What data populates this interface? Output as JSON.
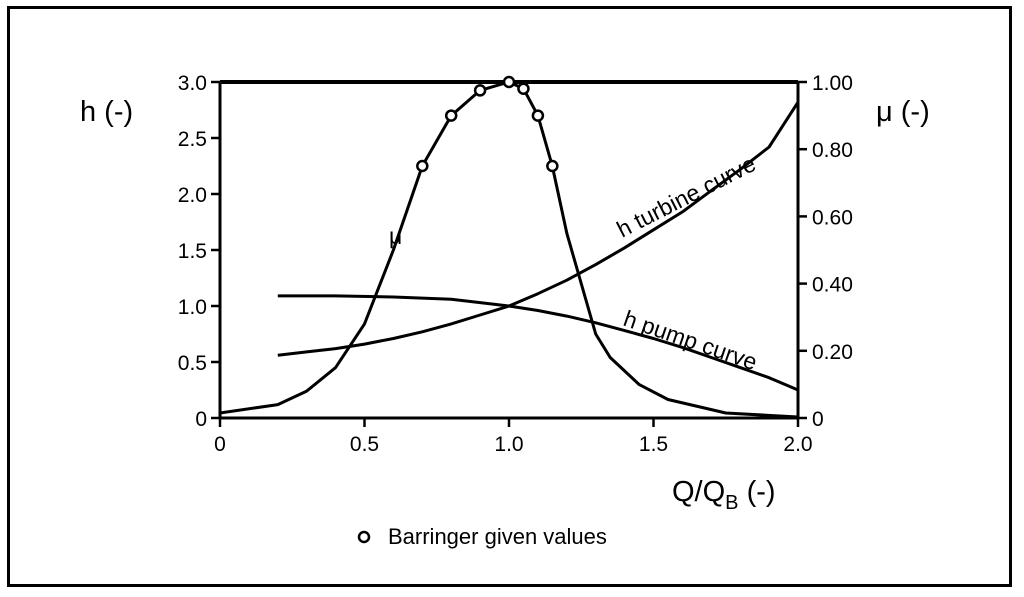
{
  "chart_data": {
    "type": "line",
    "xlabel": "Q/Q",
    "xlabel_subscript": "B",
    "xlabel_suffix": " (-)",
    "ylabel_left": "h (-)",
    "ylabel_right": "μ (-)",
    "xlim": [
      0,
      2.0
    ],
    "ylim_left": [
      0,
      3.0
    ],
    "ylim_right": [
      0,
      1.0
    ],
    "x_ticks": [
      "0",
      "0.5",
      "1.0",
      "1.5",
      "2.0"
    ],
    "y_left_ticks": [
      "0",
      "0.5",
      "1.0",
      "1.5",
      "2.0",
      "2.5",
      "3.0"
    ],
    "y_right_ticks": [
      "0",
      "0.20",
      "0.40",
      "0.60",
      "0.80",
      "1.00"
    ],
    "grid": false,
    "series": [
      {
        "name": "h turbine curve",
        "axis": "left",
        "x": [
          0.2,
          0.3,
          0.4,
          0.5,
          0.6,
          0.7,
          0.8,
          0.9,
          1.0,
          1.1,
          1.2,
          1.3,
          1.4,
          1.5,
          1.6,
          1.7,
          1.8,
          1.9,
          2.0
        ],
        "y": [
          0.56,
          0.59,
          0.62,
          0.66,
          0.71,
          0.77,
          0.84,
          0.92,
          1.0,
          1.11,
          1.23,
          1.37,
          1.52,
          1.68,
          1.84,
          2.03,
          2.22,
          2.42,
          2.82
        ]
      },
      {
        "name": "h pump curve",
        "axis": "left",
        "x": [
          0.2,
          0.4,
          0.6,
          0.8,
          0.9,
          1.0,
          1.1,
          1.2,
          1.3,
          1.4,
          1.5,
          1.6,
          1.7,
          1.8,
          1.9,
          2.0
        ],
        "y": [
          1.09,
          1.09,
          1.08,
          1.06,
          1.03,
          1.0,
          0.96,
          0.91,
          0.85,
          0.78,
          0.71,
          0.63,
          0.54,
          0.45,
          0.36,
          0.25
        ]
      },
      {
        "name": "μ",
        "axis": "right",
        "x": [
          0.0,
          0.2,
          0.3,
          0.4,
          0.5,
          0.6,
          0.7,
          0.8,
          0.9,
          1.0,
          1.05,
          1.1,
          1.15,
          1.2,
          1.3,
          1.35,
          1.45,
          1.55,
          1.75,
          2.0
        ],
        "y": [
          0.015,
          0.04,
          0.08,
          0.15,
          0.28,
          0.5,
          0.75,
          0.9,
          0.975,
          1.0,
          0.98,
          0.9,
          0.75,
          0.55,
          0.25,
          0.18,
          0.1,
          0.055,
          0.015,
          0.003
        ]
      }
    ],
    "markers": {
      "name": "Barringer given values",
      "axis": "right",
      "x": [
        0.7,
        0.8,
        0.9,
        1.0,
        1.05,
        1.1,
        1.15
      ],
      "y": [
        0.75,
        0.9,
        0.975,
        1.0,
        0.98,
        0.9,
        0.75
      ]
    },
    "annotations": {
      "turbine": "h turbine curve",
      "pump": "h pump curve",
      "mu": "μ"
    },
    "legend": {
      "position": "bottom-center",
      "entries": [
        "Barringer given values"
      ]
    }
  }
}
